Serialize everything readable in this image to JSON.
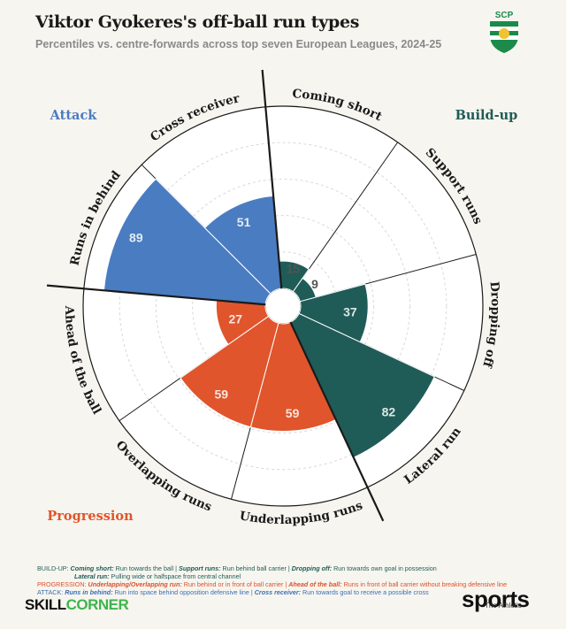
{
  "header": {
    "title": "Viktor Gyokeres's off-ball run types",
    "subtitle": "Percentiles vs. centre-forwards across top seven European Leagues, 2024-25"
  },
  "crest": {
    "text": "SCP",
    "colors": {
      "green": "#1b8a4a",
      "white": "#ffffff"
    }
  },
  "chart_data": {
    "type": "polar-bar",
    "rlim": [
      0,
      100
    ],
    "grid": true,
    "categories": [
      "Coming short",
      "Support runs",
      "Dropping off",
      "Lateral run",
      "Underlapping runs",
      "Overlapping runs",
      "Ahead of the ball",
      "Runs in behind",
      "Cross receiver"
    ],
    "values": [
      15,
      9,
      37,
      82,
      59,
      59,
      27,
      89,
      51
    ],
    "groups": [
      "Build-up",
      "Build-up",
      "Build-up",
      "Build-up",
      "Progression",
      "Progression",
      "Progression",
      "Attack",
      "Attack"
    ],
    "group_labels": {
      "build_up": "Build-up",
      "progression": "Progression",
      "attack": "Attack"
    },
    "colors": {
      "build_up": "#1f5c57",
      "progression": "#e0552c",
      "attack": "#4a7cc1"
    }
  },
  "legend": {
    "build_up_prefix": "BUILD-UP:",
    "coming_short_term": "Coming short:",
    "coming_short_desc": " Run towards the ball | ",
    "support_term": "Support runs:",
    "support_desc": " Run behind ball carrier | ",
    "dropping_term": "Dropping off:",
    "dropping_desc": " Run towards own goal in possession",
    "lateral_term": "Lateral run:",
    "lateral_desc": " Pulling wide or halfspace from central channel",
    "progression_prefix": "PROGRESSION:",
    "under_over_term": "Underlapping/Overlapping run:",
    "under_over_desc": " Run behind or in front of ball carrier | ",
    "ahead_term": "Ahead of the ball:",
    "ahead_desc": " Runs in front of ball carrier without breaking defensive line",
    "attack_prefix": "ATTACK:",
    "behind_term": "Runs in behind:",
    "behind_desc": " Run into space behind opposition defensive line | ",
    "cross_term": "Cross receiver:",
    "cross_desc": " Run towards goal to receive a possible cross"
  },
  "footer": {
    "skill": "SKILL",
    "corner": "CORNER",
    "sports": "sports",
    "athletic": "The Athletic"
  }
}
